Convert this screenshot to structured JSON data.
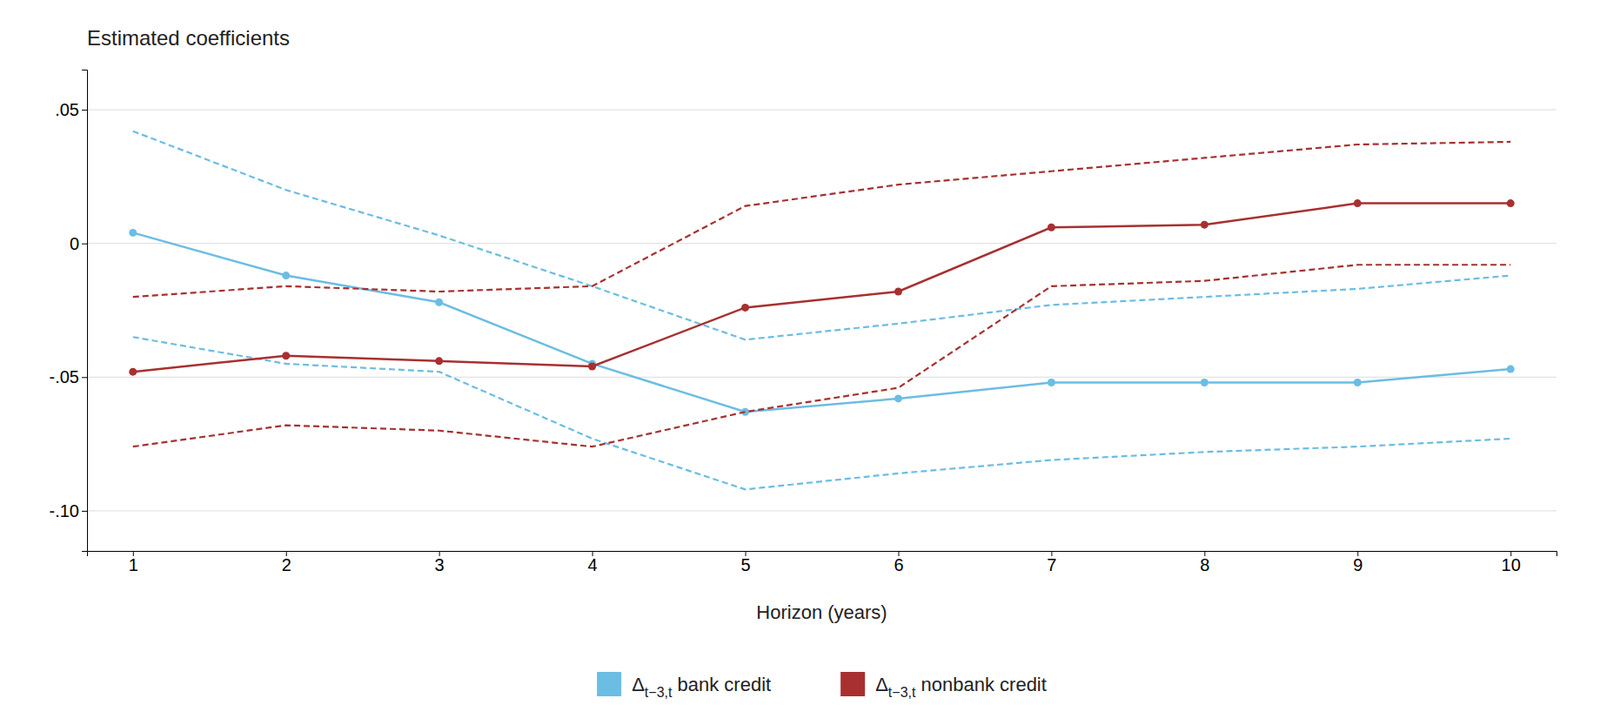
{
  "chart_data": {
    "type": "line",
    "title": "Estimated coefficients",
    "x_label": "Horizon (years)",
    "x": [
      1,
      2,
      3,
      4,
      5,
      6,
      7,
      8,
      9,
      10
    ],
    "series": [
      {
        "name": "Δt−3,t bank credit",
        "color": "#6BBDE3",
        "marker": "circle",
        "line_style": "solid",
        "values": [
          0.004,
          -0.012,
          -0.022,
          -0.045,
          -0.063,
          -0.058,
          -0.052,
          -0.052,
          -0.052,
          -0.047
        ]
      },
      {
        "color": "#6BBDE3",
        "line_style": "dashed",
        "values": [
          0.042,
          0.02,
          0.003,
          -0.016,
          -0.036,
          -0.03,
          -0.023,
          -0.02,
          -0.017,
          -0.012
        ]
      },
      {
        "color": "#6BBDE3",
        "line_style": "dashed",
        "values": [
          -0.035,
          -0.045,
          -0.048,
          -0.073,
          -0.092,
          -0.086,
          -0.081,
          -0.078,
          -0.076,
          -0.073
        ]
      },
      {
        "name": "Δt−3,t nonbank credit",
        "color": "#A83030",
        "marker": "circle",
        "line_style": "solid",
        "values": [
          -0.048,
          -0.042,
          -0.044,
          -0.046,
          -0.024,
          -0.018,
          0.006,
          0.007,
          0.015,
          0.015
        ]
      },
      {
        "color": "#A83030",
        "line_style": "dashed",
        "values": [
          -0.02,
          -0.016,
          -0.018,
          -0.016,
          0.014,
          0.022,
          0.027,
          0.032,
          0.037,
          0.038
        ]
      },
      {
        "color": "#A83030",
        "line_style": "dashed",
        "values": [
          -0.076,
          -0.068,
          -0.07,
          -0.076,
          -0.063,
          -0.054,
          -0.016,
          -0.014,
          -0.008,
          -0.008
        ]
      }
    ],
    "xlim": [
      0.7,
      10.3
    ],
    "xticks": [
      1,
      2,
      3,
      4,
      5,
      6,
      7,
      8,
      9,
      10
    ],
    "ylim": [
      -0.115,
      0.065
    ],
    "yticks": [
      {
        "value": -0.1,
        "label": "-.10"
      },
      {
        "value": -0.05,
        "label": "-.05"
      },
      0,
      {
        "value": 0.05,
        "label": ".05"
      }
    ],
    "grid": true,
    "legend": "bottom"
  }
}
